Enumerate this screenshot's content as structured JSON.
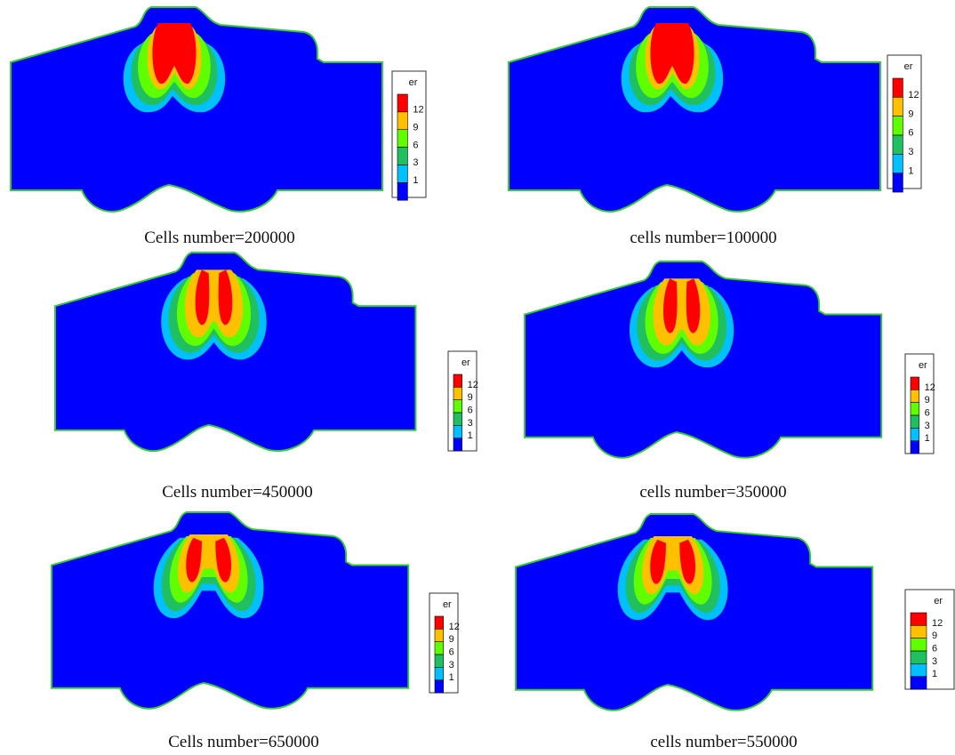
{
  "colors": {
    "background": "#ffffff",
    "domain": "#0000ff",
    "outline": "#33cc33",
    "level_1": "#0000ff",
    "level_2": "#00c0ff",
    "level_3": "#20c060",
    "level_4": "#60ff00",
    "level_5": "#ffc000",
    "level_6": "#ff0000"
  },
  "legend": {
    "title": "er",
    "ticks": [
      "12",
      "9",
      "6",
      "3",
      "1"
    ]
  },
  "panels": [
    {
      "caption": "Cells number=200000",
      "plume": "lobes-merged",
      "legend_truncated": false
    },
    {
      "caption": "cells number=100000",
      "plume": "lobes-merged",
      "legend_truncated": false
    },
    {
      "caption": "Cells number=450000",
      "plume": "twin-lobes",
      "legend_truncated": false
    },
    {
      "caption": "cells number=350000",
      "plume": "twin-lobes",
      "legend_truncated": false
    },
    {
      "caption": "Cells number=650000",
      "plume": "split-lobes",
      "legend_truncated": false
    },
    {
      "caption": "cells number=550000",
      "plume": "split-lobes",
      "legend_truncated": true
    }
  ]
}
